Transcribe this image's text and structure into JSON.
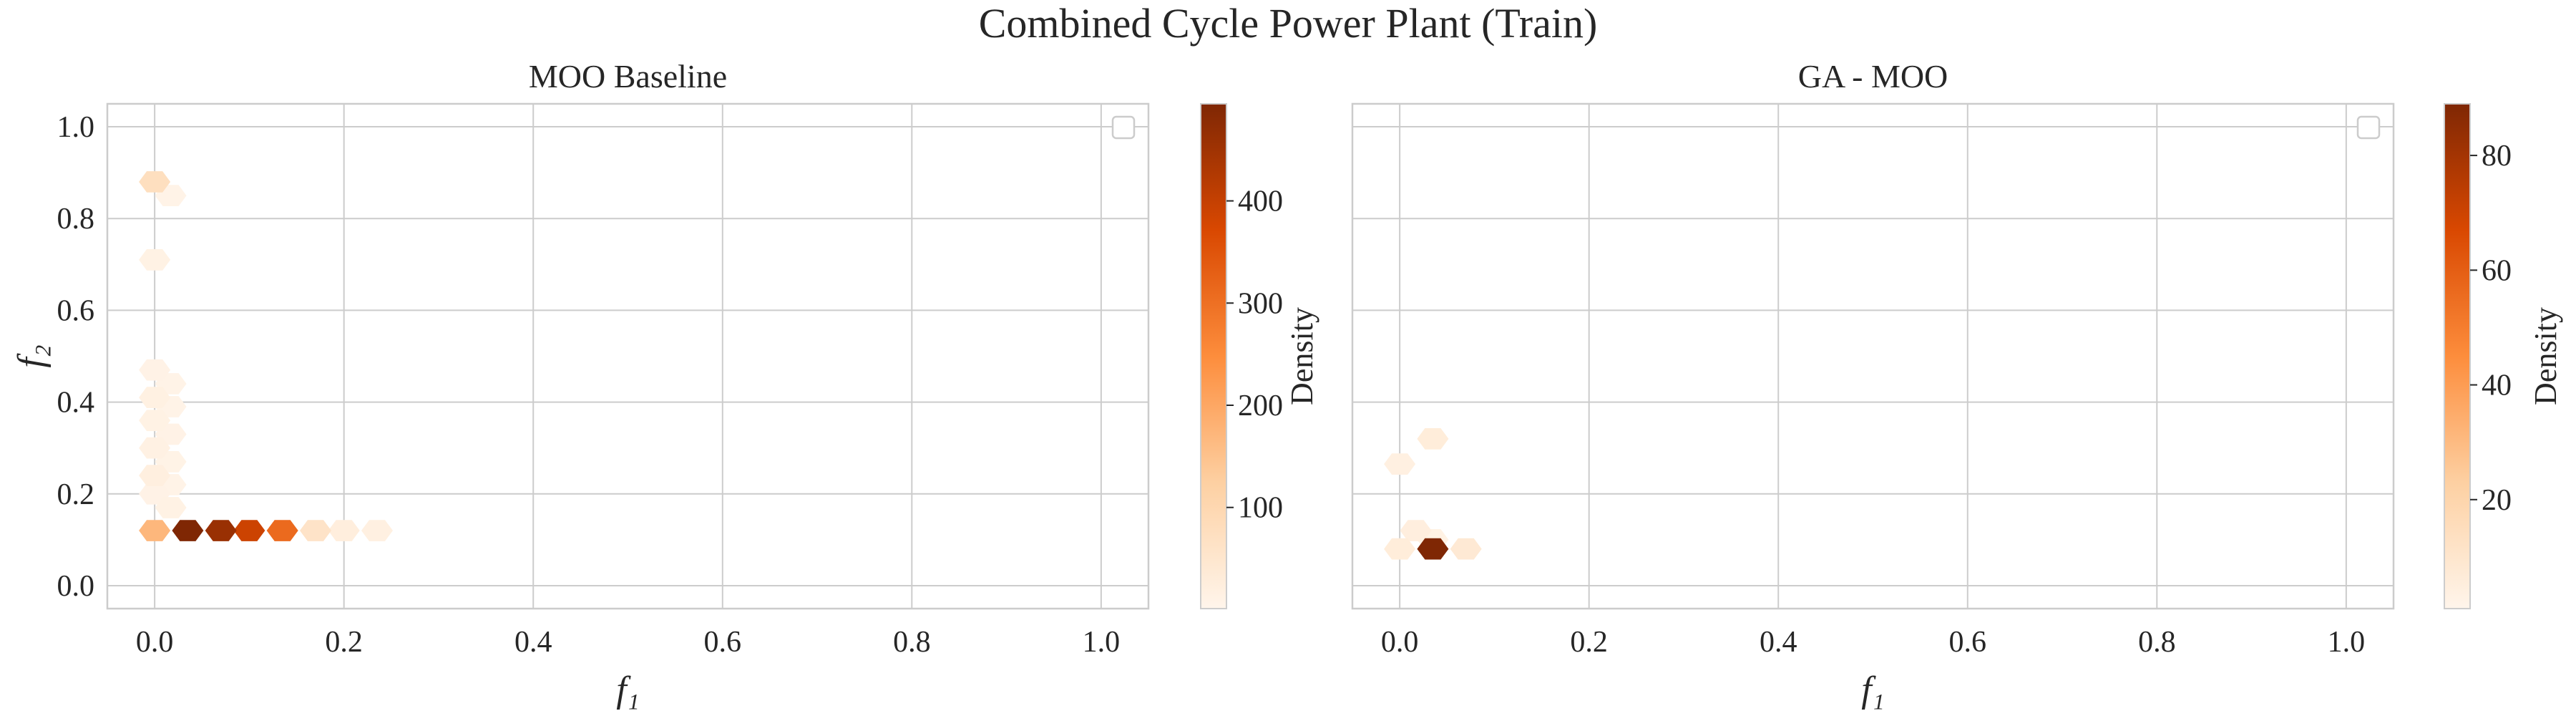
{
  "figure": {
    "title": "Combined Cycle Power Plant (Train)"
  },
  "colors": {
    "cmap": [
      "#fff5eb",
      "#fdd0a2",
      "#fd8d3c",
      "#d94801",
      "#7f2704"
    ]
  },
  "chart_data": [
    {
      "type": "hexbin",
      "title": "MOO Baseline",
      "xlabel": "f₁",
      "ylabel": "f₂",
      "xlim": [
        -0.05,
        1.05
      ],
      "ylim": [
        -0.05,
        1.05
      ],
      "xticks": [
        0.0,
        0.2,
        0.4,
        0.6,
        0.8,
        1.0
      ],
      "yticks": [
        0.0,
        0.2,
        0.4,
        0.6,
        0.8,
        1.0
      ],
      "tick_labels_x": [
        "0.0",
        "0.2",
        "0.4",
        "0.6",
        "0.8",
        "1.0"
      ],
      "tick_labels_y": [
        "0.0",
        "0.2",
        "0.4",
        "0.6",
        "0.8",
        "1.0"
      ],
      "grid": true,
      "legend": "top-right, empty",
      "colorbar": {
        "label": "Density",
        "min": 1,
        "max": 495,
        "ticks": [
          100,
          200,
          300,
          400
        ],
        "tick_labels": [
          "100",
          "200",
          "300",
          "400"
        ]
      },
      "cells": [
        {
          "x": 0.0,
          "y": 0.12,
          "count": 170
        },
        {
          "x": 0.035,
          "y": 0.12,
          "count": 495
        },
        {
          "x": 0.07,
          "y": 0.12,
          "count": 460
        },
        {
          "x": 0.1,
          "y": 0.12,
          "count": 390
        },
        {
          "x": 0.135,
          "y": 0.12,
          "count": 310
        },
        {
          "x": 0.17,
          "y": 0.12,
          "count": 60
        },
        {
          "x": 0.2,
          "y": 0.12,
          "count": 25
        },
        {
          "x": 0.235,
          "y": 0.12,
          "count": 18
        },
        {
          "x": 0.017,
          "y": 0.17,
          "count": 12
        },
        {
          "x": 0.0,
          "y": 0.2,
          "count": 10
        },
        {
          "x": 0.017,
          "y": 0.22,
          "count": 8
        },
        {
          "x": 0.0,
          "y": 0.24,
          "count": 22
        },
        {
          "x": 0.017,
          "y": 0.27,
          "count": 9
        },
        {
          "x": 0.0,
          "y": 0.3,
          "count": 14
        },
        {
          "x": 0.017,
          "y": 0.33,
          "count": 10
        },
        {
          "x": 0.0,
          "y": 0.36,
          "count": 12
        },
        {
          "x": 0.017,
          "y": 0.39,
          "count": 8
        },
        {
          "x": 0.0,
          "y": 0.41,
          "count": 16
        },
        {
          "x": 0.017,
          "y": 0.44,
          "count": 8
        },
        {
          "x": 0.0,
          "y": 0.47,
          "count": 10
        },
        {
          "x": 0.0,
          "y": 0.71,
          "count": 12
        },
        {
          "x": 0.017,
          "y": 0.85,
          "count": 8
        },
        {
          "x": 0.0,
          "y": 0.88,
          "count": 75
        }
      ]
    },
    {
      "type": "hexbin",
      "title": "GA - MOO",
      "xlabel": "f₁",
      "ylabel": "",
      "xlim": [
        -0.05,
        1.05
      ],
      "ylim": [
        -0.05,
        1.05
      ],
      "xticks": [
        0.0,
        0.2,
        0.4,
        0.6,
        0.8,
        1.0
      ],
      "yticks": [
        0.0,
        0.2,
        0.4,
        0.6,
        0.8,
        1.0
      ],
      "tick_labels_x": [
        "0.0",
        "0.2",
        "0.4",
        "0.6",
        "0.8",
        "1.0"
      ],
      "tick_labels_y": [],
      "grid": true,
      "legend": "top-right, empty",
      "colorbar": {
        "label": "Density",
        "min": 1,
        "max": 89,
        "ticks": [
          20,
          40,
          60,
          80
        ],
        "tick_labels": [
          "20",
          "40",
          "60",
          "80"
        ]
      },
      "cells": [
        {
          "x": 0.0,
          "y": 0.08,
          "count": 6
        },
        {
          "x": 0.035,
          "y": 0.08,
          "count": 89
        },
        {
          "x": 0.07,
          "y": 0.08,
          "count": 8
        },
        {
          "x": 0.017,
          "y": 0.12,
          "count": 5
        },
        {
          "x": 0.035,
          "y": 0.1,
          "count": 3
        },
        {
          "x": 0.0,
          "y": 0.265,
          "count": 4
        },
        {
          "x": 0.035,
          "y": 0.32,
          "count": 6
        }
      ]
    }
  ]
}
